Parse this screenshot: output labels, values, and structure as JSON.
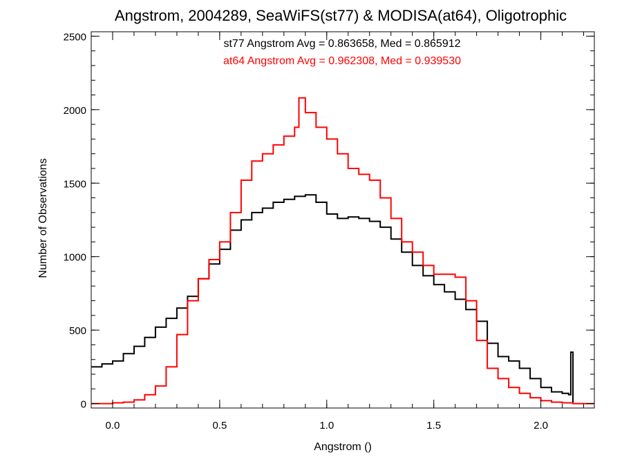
{
  "chart_data": {
    "type": "line",
    "title": "Angstrom, 2004289, SeaWiFS(st77) & MODISA(at64), Oligotrophic",
    "xlabel": "Angstrom ()",
    "ylabel": "Number of Observations",
    "xlim": [
      -0.1,
      2.25
    ],
    "ylim": [
      -30,
      2530
    ],
    "x_ticks": [
      0.0,
      0.5,
      1.0,
      1.5,
      2.0
    ],
    "x_tick_labels": [
      "0.0",
      "0.5",
      "1.0",
      "1.5",
      "2.0"
    ],
    "y_ticks": [
      0,
      500,
      1000,
      1500,
      2000,
      2500
    ],
    "y_tick_labels": [
      "0",
      "500",
      "1000",
      "1500",
      "2000",
      "2500"
    ],
    "grid": false,
    "annotations": [
      {
        "text": "st77 Angstrom Avg = 0.863658, Med = 0.865912",
        "color": "#000000"
      },
      {
        "text": "at64 Angstrom Avg = 0.962308, Med = 0.939530",
        "color": "#ff0000"
      }
    ],
    "series": [
      {
        "color": "#000000",
        "style": "step",
        "x": [
          -0.1,
          -0.05,
          0.0,
          0.05,
          0.1,
          0.15,
          0.2,
          0.25,
          0.3,
          0.35,
          0.4,
          0.45,
          0.5,
          0.55,
          0.6,
          0.65,
          0.7,
          0.75,
          0.8,
          0.85,
          0.9,
          0.95,
          1.0,
          1.05,
          1.1,
          1.15,
          1.2,
          1.25,
          1.3,
          1.35,
          1.4,
          1.45,
          1.5,
          1.55,
          1.6,
          1.65,
          1.7,
          1.75,
          1.8,
          1.85,
          1.9,
          1.95,
          2.0,
          2.05,
          2.1,
          2.13,
          2.14,
          2.15
        ],
        "y": [
          250,
          270,
          290,
          340,
          390,
          450,
          520,
          580,
          650,
          730,
          850,
          950,
          1050,
          1180,
          1250,
          1300,
          1330,
          1370,
          1390,
          1410,
          1420,
          1370,
          1290,
          1260,
          1270,
          1260,
          1240,
          1200,
          1120,
          1030,
          940,
          870,
          810,
          760,
          710,
          640,
          560,
          410,
          320,
          290,
          240,
          170,
          110,
          80,
          70,
          60,
          350,
          0
        ]
      },
      {
        "color": "#ff0000",
        "style": "step",
        "x": [
          -0.1,
          -0.05,
          0.0,
          0.05,
          0.1,
          0.15,
          0.2,
          0.25,
          0.3,
          0.35,
          0.4,
          0.45,
          0.5,
          0.55,
          0.6,
          0.65,
          0.7,
          0.75,
          0.8,
          0.85,
          0.87,
          0.9,
          0.95,
          1.0,
          1.05,
          1.1,
          1.15,
          1.2,
          1.25,
          1.3,
          1.35,
          1.4,
          1.45,
          1.5,
          1.55,
          1.6,
          1.65,
          1.7,
          1.75,
          1.8,
          1.85,
          1.9,
          1.95,
          2.0,
          2.05,
          2.1,
          2.15,
          2.25
        ],
        "y": [
          0,
          0,
          5,
          10,
          25,
          60,
          120,
          250,
          470,
          700,
          850,
          980,
          1100,
          1300,
          1520,
          1650,
          1700,
          1760,
          1820,
          1880,
          2080,
          1980,
          1880,
          1800,
          1700,
          1600,
          1560,
          1520,
          1400,
          1260,
          1100,
          1030,
          940,
          880,
          880,
          860,
          700,
          430,
          240,
          170,
          110,
          70,
          40,
          20,
          10,
          5,
          0,
          0
        ]
      }
    ]
  }
}
